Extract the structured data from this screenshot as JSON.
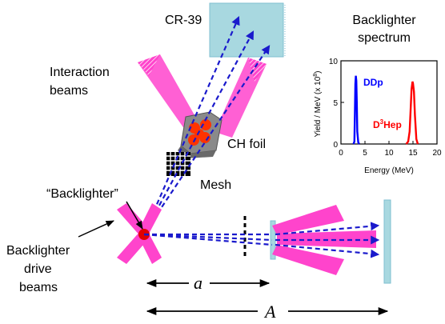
{
  "labels": {
    "cr39": "CR-39",
    "interaction_beams_1": "Interaction",
    "interaction_beams_2": "beams",
    "ch_foil": "CH foil",
    "backlighter": "“Backlighter”",
    "mesh": "Mesh",
    "drive_beams_1": "Backlighter",
    "drive_beams_2": "drive",
    "drive_beams_3": "beams",
    "dist_small": "a",
    "dist_large": "A"
  },
  "colors": {
    "beam": "#ff44cc",
    "ray": "#1a1acc",
    "detector": "#a8d8e0",
    "foil": "#8a8a8a",
    "bubble": "#ff3300",
    "ddp": "#0000ff",
    "d3hep": "#ff0000"
  },
  "chart_data": {
    "type": "line",
    "title": "Backlighter",
    "subtitle": "spectrum",
    "xlabel": "Energy (MeV)",
    "ylabel": "Yield / MeV  (x 10",
    "ylabel_exp": "8",
    "ylabel_close": ")",
    "xlim": [
      0,
      20
    ],
    "ylim": [
      0,
      10
    ],
    "xticks": [
      "0",
      "5",
      "10",
      "15",
      "20"
    ],
    "yticks": [
      "0",
      "5",
      "10"
    ],
    "series": [
      {
        "name": "DDp",
        "x": [
          2.6,
          2.8,
          2.9,
          3.0,
          3.1,
          3.2,
          3.3,
          3.4,
          3.6,
          3.8
        ],
        "y": [
          0,
          0.3,
          3.5,
          7.2,
          8.2,
          7.6,
          5.0,
          1.5,
          0.2,
          0
        ]
      },
      {
        "name": "D3Hep",
        "name_main": "D",
        "name_sup": "3",
        "name_rest": "Hep",
        "x": [
          13.6,
          14.0,
          14.3,
          14.5,
          14.7,
          14.9,
          15.0,
          15.2,
          15.4,
          15.7,
          16.0
        ],
        "y": [
          0,
          0.3,
          1.5,
          4.0,
          6.6,
          7.5,
          7.3,
          6.3,
          3.5,
          0.6,
          0
        ]
      }
    ]
  }
}
